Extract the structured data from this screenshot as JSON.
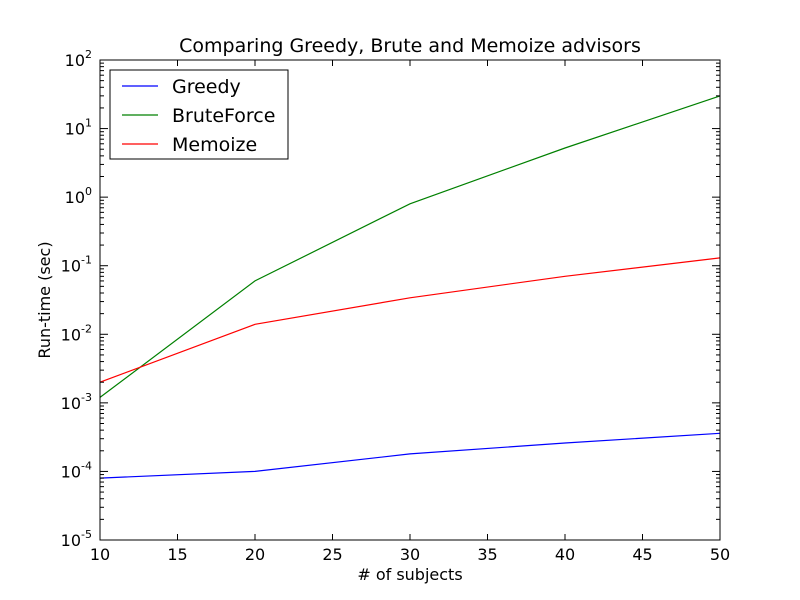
{
  "chart_data": {
    "type": "line",
    "title": "Comparing Greedy, Brute and Memoize advisors",
    "xlabel": "# of subjects",
    "ylabel": "Run-time (sec)",
    "xlim": [
      10,
      50
    ],
    "ylim": [
      1e-05,
      100
    ],
    "yscale": "log",
    "x_ticks": [
      "10",
      "15",
      "20",
      "25",
      "30",
      "35",
      "40",
      "45",
      "50"
    ],
    "y_ticks": [
      {
        "base": "10",
        "exp": "-5"
      },
      {
        "base": "10",
        "exp": "-4"
      },
      {
        "base": "10",
        "exp": "-3"
      },
      {
        "base": "10",
        "exp": "-2"
      },
      {
        "base": "10",
        "exp": "-1"
      },
      {
        "base": "10",
        "exp": "0"
      },
      {
        "base": "10",
        "exp": "1"
      },
      {
        "base": "10",
        "exp": "2"
      }
    ],
    "grid": false,
    "legend_position": "top-left",
    "x": [
      10,
      20,
      30,
      40,
      50
    ],
    "series": [
      {
        "name": "Greedy",
        "color": "#0000ff",
        "values": [
          8e-05,
          0.0001,
          0.00018,
          0.00026,
          0.00036
        ]
      },
      {
        "name": "BruteForce",
        "color": "#008000",
        "values": [
          0.0012,
          0.06,
          0.8,
          5.2,
          30
        ]
      },
      {
        "name": "Memoize",
        "color": "#ff0000",
        "values": [
          0.002,
          0.014,
          0.034,
          0.07,
          0.13
        ]
      }
    ]
  }
}
